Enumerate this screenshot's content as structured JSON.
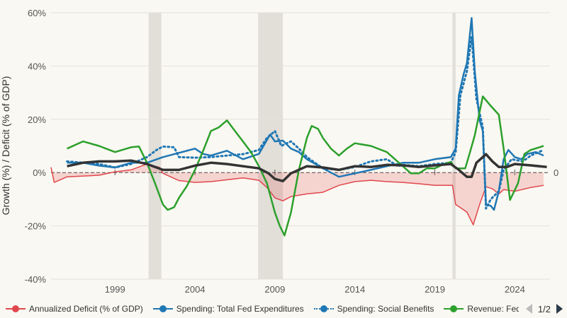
{
  "chart_data": {
    "type": "line",
    "title": "",
    "xlabel": "",
    "ylabel": "Growth (%) / Deficit (% of GDP)",
    "xlim": [
      1995,
      2026.2
    ],
    "ylim": [
      -40,
      60
    ],
    "yticks": [
      -40,
      -20,
      0,
      20,
      40,
      60
    ],
    "ytick_labels": [
      "-40%",
      "-20%",
      "0%",
      "20%",
      "40%",
      "60%"
    ],
    "xticks": [
      1999,
      2004,
      2009,
      2014,
      2019,
      2024
    ],
    "xtick_labels": [
      "1999",
      "2004",
      "2009",
      "2014",
      "2019",
      "2024"
    ],
    "zero_label": "0",
    "grid": true,
    "legend_position": "bottom",
    "legend_page": "1/2",
    "recessions": [
      [
        2001.1,
        2001.9
      ],
      [
        2007.95,
        2009.5
      ],
      [
        2020.1,
        2020.3
      ]
    ],
    "series": [
      {
        "name": "Annualized Deficit (% of GDP)",
        "color": "#e0474c",
        "style": "solid",
        "fill": true,
        "x": [
          1995,
          1995.2,
          1996,
          1998,
          1999,
          2000,
          2001,
          2001.8,
          2002,
          2003,
          2004,
          2005,
          2006,
          2007,
          2008,
          2008.5,
          2009,
          2009.5,
          2010,
          2011,
          2012,
          2013,
          2014,
          2015,
          2016,
          2017,
          2018,
          2019,
          2020.1,
          2020.3,
          2021,
          2021.4,
          2021.8,
          2022.2,
          2022.6,
          2023,
          2023.3,
          2024,
          2025,
          2025.8
        ],
        "y": [
          2,
          -3.7,
          -1.6,
          -1,
          0.3,
          1,
          3.2,
          1.9,
          -0.3,
          -3,
          -3.7,
          -3.4,
          -2.7,
          -2,
          -2.9,
          -5.6,
          -9.5,
          -10.6,
          -9,
          -8,
          -7.4,
          -4.8,
          -3.4,
          -2.9,
          -3.4,
          -3.7,
          -4.2,
          -4.8,
          -4.8,
          -12,
          -14.8,
          -19.6,
          -12,
          -5.3,
          -6.1,
          -8,
          -6.4,
          -7,
          -5.6,
          -4.8
        ]
      },
      {
        "name": "Spending: Total Fed Expenditures",
        "color": "#1f77b4",
        "style": "solid",
        "x": [
          1996,
          1997,
          1998,
          1999,
          2000,
          2001,
          2002,
          2003,
          2004,
          2004.5,
          2005,
          2006,
          2007,
          2008,
          2008.7,
          2009,
          2009.5,
          2010,
          2010.5,
          2011,
          2012,
          2013,
          2014,
          2015,
          2016,
          2017,
          2018,
          2019,
          2020,
          2020.3,
          2020.5,
          2020.8,
          2021,
          2021.3,
          2021.5,
          2021.8,
          2022,
          2022.2,
          2022.5,
          2022.7,
          2023,
          2023.3,
          2023.6,
          2024,
          2024.4,
          2024.8,
          2025.3,
          2025.8
        ],
        "y": [
          3.7,
          3.7,
          2.6,
          1.9,
          3.7,
          3.7,
          5.8,
          7.4,
          9,
          7,
          6.4,
          8.2,
          5,
          7,
          14.3,
          11.7,
          12,
          9,
          7.7,
          5,
          1.6,
          -1.6,
          -0.3,
          1,
          2.4,
          3.7,
          3.7,
          5,
          5.8,
          9,
          29,
          37,
          41,
          58,
          38,
          19.6,
          15.6,
          -12,
          -12.5,
          -14,
          -7,
          5,
          8.5,
          5.8,
          5,
          7,
          7.7,
          6.4
        ]
      },
      {
        "name": "Spending: Social Benefits",
        "color": "#1f77b4",
        "style": "dotted",
        "x": [
          1996,
          1998,
          1999,
          2000,
          2001,
          2001.6,
          2002,
          2002.7,
          2003,
          2004,
          2005,
          2006,
          2007,
          2008,
          2008.5,
          2009,
          2009.4,
          2010,
          2010.5,
          2011,
          2012,
          2013,
          2014,
          2015,
          2016,
          2016.7,
          2017,
          2018,
          2019,
          2020,
          2020.3,
          2020.6,
          2021,
          2021.3,
          2021.6,
          2022,
          2022.2,
          2022.5,
          2023,
          2023.3,
          2023.8,
          2024.5,
          2025,
          2025.8
        ],
        "y": [
          4.2,
          3.2,
          1.9,
          3.2,
          5.8,
          8.5,
          9.8,
          9.5,
          5.8,
          5.6,
          5.8,
          6.4,
          6.9,
          8.5,
          13,
          15.6,
          10,
          11.7,
          9,
          5.8,
          1.6,
          1,
          2.1,
          4.2,
          5,
          2.4,
          2.9,
          2.4,
          3.2,
          3.7,
          7.7,
          29,
          38,
          51,
          27.6,
          17,
          -13.5,
          -10,
          -7,
          1,
          5,
          4.2,
          6.4,
          8.5
        ]
      },
      {
        "name": "Revenue: Federal Tax Rec",
        "color": "#2ca02c",
        "style": "solid",
        "x": [
          1996,
          1997,
          1998,
          1999,
          2000,
          2000.5,
          2001,
          2001.5,
          2002,
          2002.3,
          2002.7,
          2003,
          2003.5,
          2004,
          2004.5,
          2005,
          2005.5,
          2006,
          2006.5,
          2007,
          2007.5,
          2008,
          2008.5,
          2009,
          2009.3,
          2009.6,
          2010,
          2010.5,
          2011,
          2011.3,
          2011.7,
          2012,
          2012.5,
          2013,
          2013.5,
          2014,
          2015,
          2016,
          2017,
          2017.5,
          2018,
          2018.5,
          2019,
          2019.5,
          2020,
          2020.3,
          2020.9,
          2021.2,
          2021.5,
          2022,
          2022.5,
          2023,
          2023.3,
          2023.7,
          2024.2,
          2024.6,
          2025,
          2025.8
        ],
        "y": [
          9,
          11.7,
          10,
          7.7,
          9.5,
          9.8,
          3.7,
          -4,
          -12,
          -14,
          -13,
          -9.5,
          -5,
          1,
          8,
          15.6,
          17,
          19.6,
          15.6,
          11.7,
          7.7,
          2.4,
          -4,
          -15,
          -20,
          -23.6,
          -15,
          1,
          13,
          17.5,
          16.4,
          13,
          9,
          6.4,
          9,
          11,
          10,
          7.7,
          2.4,
          -0.3,
          -0.3,
          1.6,
          1.6,
          3,
          4,
          1.6,
          1.6,
          7.7,
          14,
          28.6,
          25,
          21.7,
          9,
          -10.3,
          -4,
          7,
          8.5,
          10
        ]
      },
      {
        "name": "",
        "color": "#333333",
        "style": "solid",
        "x": [
          1996,
          1997,
          1998,
          1999,
          2000,
          2001,
          2002,
          2003,
          2004,
          2005,
          2006,
          2007,
          2008,
          2008.6,
          2009,
          2009.5,
          2010,
          2011,
          2012,
          2013,
          2014,
          2015,
          2016,
          2017,
          2018,
          2019,
          2020,
          2020.5,
          2021,
          2021.3,
          2021.6,
          2022,
          2022.2,
          2022.6,
          2023,
          2023.5,
          2024,
          2025,
          2026
        ],
        "y": [
          2.4,
          3.7,
          4.2,
          4.2,
          4.5,
          3.2,
          1,
          1,
          2.6,
          3.7,
          3.2,
          2.4,
          1.6,
          -0.3,
          -2.4,
          -3.2,
          -0.3,
          2.4,
          1.9,
          1,
          2.4,
          2.1,
          2.9,
          2.7,
          2.1,
          2.7,
          3.2,
          1,
          -1.6,
          -1.6,
          3.7,
          5.8,
          6.9,
          4.2,
          2.1,
          2.1,
          3.2,
          2.7,
          2.1
        ]
      }
    ]
  }
}
